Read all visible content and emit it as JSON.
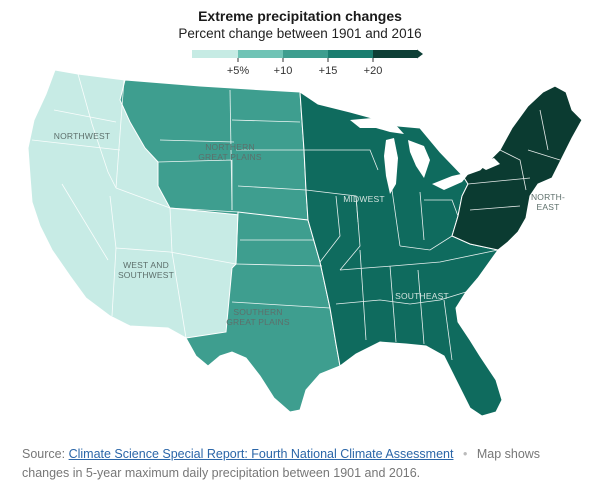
{
  "header": {
    "title": "Extreme precipitation changes",
    "subtitle": "Percent change between 1901 and 2016"
  },
  "legend": {
    "ticks": [
      "+5%",
      "+10",
      "+15",
      "+20"
    ],
    "colors": [
      "#c6ebe4",
      "#6fc3b5",
      "#3e9e8f",
      "#1a7d6f",
      "#0e3f36"
    ]
  },
  "regions": {
    "northwest": "NORTHWEST",
    "northern_great_plains": [
      "NORTHERN",
      "GREAT PLAINS"
    ],
    "midwest": "MIDWEST",
    "northeast": [
      "NORTH-",
      "EAST"
    ],
    "west_southwest": [
      "WEST AND",
      "SOUTHWEST"
    ],
    "southern_great_plains": [
      "SOUTHERN",
      "GREAT PLAINS"
    ],
    "southeast": "SOUTHEAST"
  },
  "colors": {
    "west": "#c7ebe5",
    "plains": "#3e9e8f",
    "midwest_southeast": "#0f6b5e",
    "northeast": "#0b3b31",
    "borders": "#ffffff"
  },
  "footer": {
    "source_label": "Source:",
    "source_link": "Climate Science Special Report: Fourth National Climate Assessment",
    "separator": "•",
    "note": "Map shows changes in 5-year maximum daily precipitation between 1901 and 2016."
  }
}
